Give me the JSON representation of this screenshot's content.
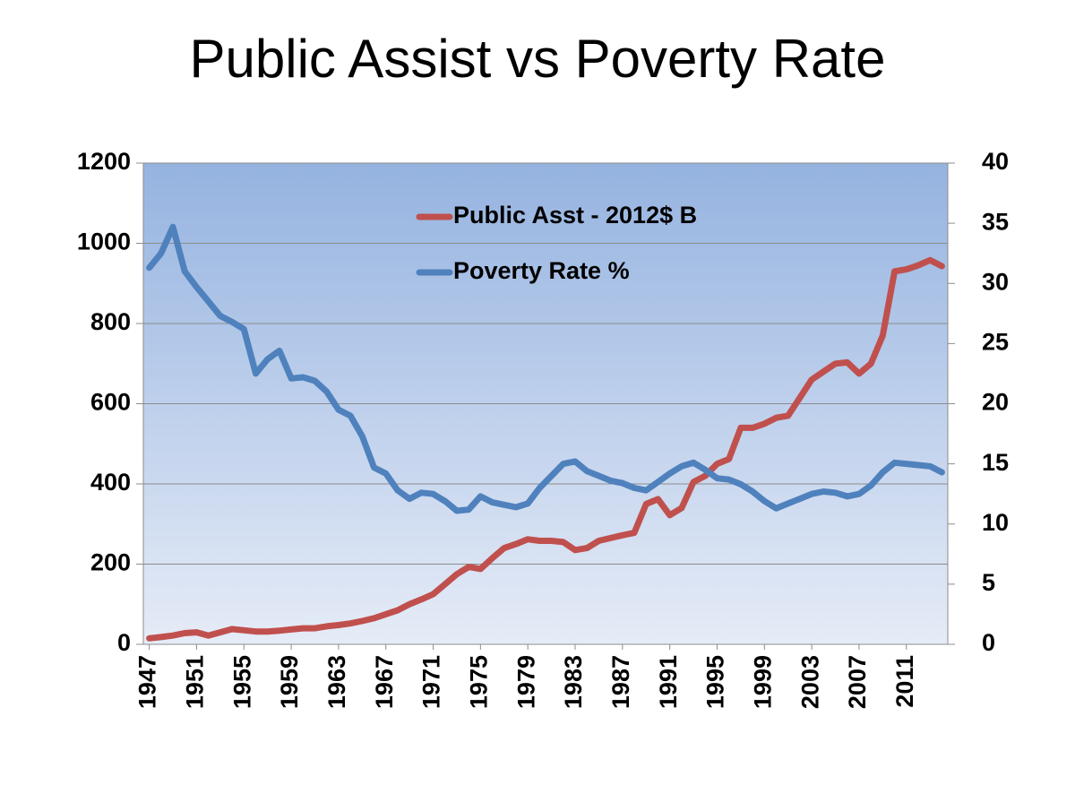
{
  "chart_data": {
    "type": "line",
    "title": "Public Assist vs Poverty Rate",
    "x": [
      1947,
      1948,
      1949,
      1950,
      1951,
      1952,
      1953,
      1954,
      1955,
      1956,
      1957,
      1958,
      1959,
      1960,
      1961,
      1962,
      1963,
      1964,
      1965,
      1966,
      1967,
      1968,
      1969,
      1970,
      1971,
      1972,
      1973,
      1974,
      1975,
      1976,
      1977,
      1978,
      1979,
      1980,
      1981,
      1982,
      1983,
      1984,
      1985,
      1986,
      1987,
      1988,
      1989,
      1990,
      1991,
      1992,
      1993,
      1994,
      1995,
      1996,
      1997,
      1998,
      1999,
      2000,
      2001,
      2002,
      2003,
      2004,
      2005,
      2006,
      2007,
      2008,
      2009,
      2010,
      2011,
      2012,
      2013,
      2014
    ],
    "xlim": [
      1946.5,
      2014.5
    ],
    "xticks": [
      1947,
      1951,
      1955,
      1959,
      1963,
      1967,
      1971,
      1975,
      1979,
      1983,
      1987,
      1991,
      1995,
      1999,
      2003,
      2007,
      2011
    ],
    "ylim": [
      0,
      1200
    ],
    "yticks": [
      0,
      200,
      400,
      600,
      800,
      1000,
      1200
    ],
    "y2lim": [
      0,
      40
    ],
    "y2ticks": [
      0,
      5,
      10,
      15,
      20,
      25,
      30,
      35,
      40
    ],
    "grid": true,
    "legend": "top",
    "series": [
      {
        "name": "Public Asst - 2012$ B",
        "color": "#c0504d",
        "values": [
          15,
          18,
          22,
          28,
          30,
          22,
          30,
          38,
          35,
          32,
          32,
          34,
          37,
          40,
          40,
          45,
          48,
          52,
          58,
          65,
          75,
          85,
          100,
          112,
          125,
          150,
          175,
          193,
          188,
          215,
          240,
          250,
          262,
          258,
          258,
          255,
          235,
          240,
          258,
          265,
          272,
          278,
          350,
          362,
          322,
          340,
          405,
          420,
          450,
          462,
          540,
          540,
          550,
          565,
          570,
          615,
          660,
          680,
          700,
          703,
          675,
          700,
          770,
          930,
          935,
          945,
          958,
          943
        ]
      },
      {
        "name": "Poverty Rate %",
        "color": "#4f81bd",
        "axis": "y2",
        "values": [
          31.3,
          32.5,
          34.7,
          31.0,
          29.7,
          28.5,
          27.3,
          26.8,
          26.2,
          22.5,
          23.7,
          24.4,
          22.1,
          22.2,
          21.9,
          21.0,
          19.5,
          19.0,
          17.3,
          14.7,
          14.2,
          12.8,
          12.1,
          12.6,
          12.5,
          11.9,
          11.1,
          11.2,
          12.3,
          11.8,
          11.6,
          11.4,
          11.7,
          13.0,
          14.0,
          15.0,
          15.2,
          14.4,
          14.0,
          13.6,
          13.4,
          13.0,
          12.8,
          13.5,
          14.2,
          14.8,
          15.1,
          14.5,
          13.8,
          13.7,
          13.3,
          12.7,
          11.9,
          11.3,
          11.7,
          12.1,
          12.5,
          12.7,
          12.6,
          12.3,
          12.5,
          13.2,
          14.3,
          15.1,
          15.0,
          14.9,
          14.8,
          14.3
        ]
      }
    ]
  }
}
